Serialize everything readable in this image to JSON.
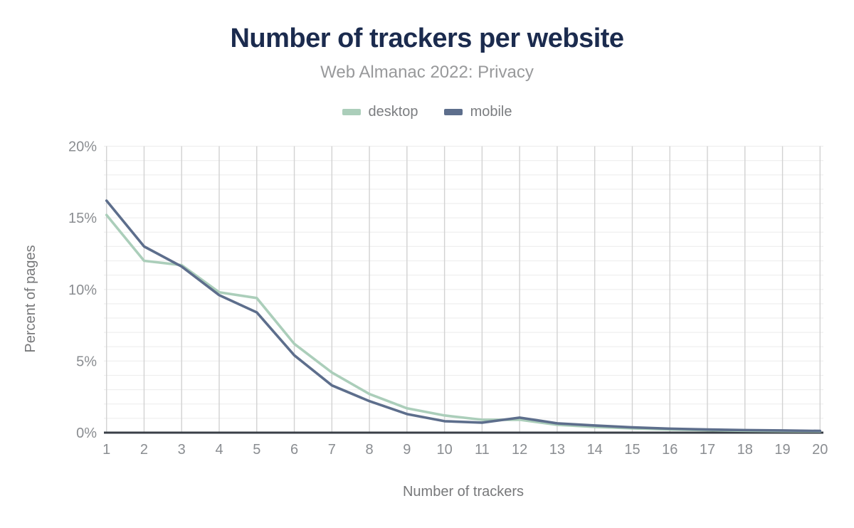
{
  "header": {
    "title": "Number of trackers per website",
    "subtitle": "Web Almanac 2022: Privacy"
  },
  "chart_data": {
    "type": "line",
    "title": "Number of trackers per website",
    "subtitle": "Web Almanac 2022: Privacy",
    "xlabel": "Number of trackers",
    "ylabel": "Percent of pages",
    "x": [
      1,
      2,
      3,
      4,
      5,
      6,
      7,
      8,
      9,
      10,
      11,
      12,
      13,
      14,
      15,
      16,
      17,
      18,
      19,
      20
    ],
    "x_tick_labels": [
      "1",
      "2",
      "3",
      "4",
      "5",
      "6",
      "7",
      "8",
      "9",
      "10",
      "11",
      "12",
      "13",
      "14",
      "15",
      "16",
      "17",
      "18",
      "19",
      "20"
    ],
    "series": [
      {
        "name": "desktop",
        "color": "#abceba",
        "values": [
          15.2,
          12.0,
          11.7,
          9.8,
          9.4,
          6.2,
          4.2,
          2.7,
          1.7,
          1.2,
          0.9,
          0.9,
          0.55,
          0.4,
          0.3,
          0.22,
          0.17,
          0.13,
          0.11,
          0.09
        ]
      },
      {
        "name": "mobile",
        "color": "#5d6e8c",
        "values": [
          16.2,
          13.0,
          11.6,
          9.6,
          8.4,
          5.4,
          3.3,
          2.2,
          1.3,
          0.8,
          0.7,
          1.05,
          0.65,
          0.5,
          0.37,
          0.28,
          0.22,
          0.18,
          0.15,
          0.12
        ]
      }
    ],
    "ylim": [
      0,
      20
    ],
    "y_ticks": [
      0,
      5,
      10,
      15,
      20
    ],
    "y_tick_labels": [
      "0%",
      "5%",
      "10%",
      "15%",
      "20%"
    ],
    "y_tick_suffix": "%",
    "grid": {
      "vertical": true,
      "horizontal": true,
      "y_minor_step": 1
    },
    "legend_position": "top",
    "style": {
      "title_color": "#1b2b4e",
      "subtitle_color": "#98999b",
      "tick_label_color": "#8a8d91",
      "axis_title_color": "#77787a",
      "v_gridline_color": "#d2d2d2",
      "h_gridline_color": "#efefef",
      "axis_line_color": "#3a3f47",
      "background": "#ffffff"
    }
  }
}
